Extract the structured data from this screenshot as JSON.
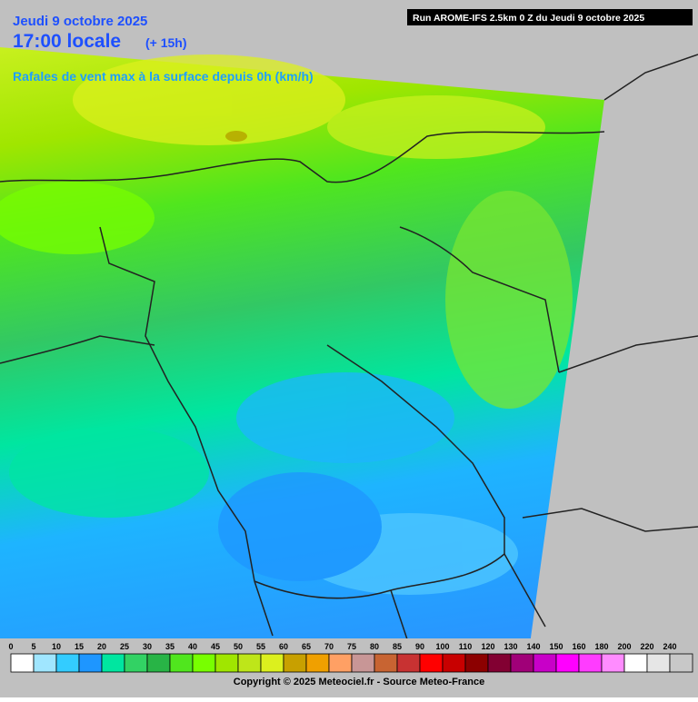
{
  "header": {
    "date": "Jeudi 9 octobre 2025",
    "time": "17:00 locale",
    "lead": "(+ 15h)",
    "parameter": "Rafales de vent max à la surface depuis 0h (km/h)",
    "run": "Run AROME-IFS 2.5km 0 Z du Jeudi 9 octobre 2025"
  },
  "legend": [
    {
      "label": "0",
      "color": "#ffffff"
    },
    {
      "label": "5",
      "color": "#a0e6ff"
    },
    {
      "label": "10",
      "color": "#33ccff"
    },
    {
      "label": "15",
      "color": "#1e96ff"
    },
    {
      "label": "20",
      "color": "#00e6a0"
    },
    {
      "label": "25",
      "color": "#32d264"
    },
    {
      "label": "30",
      "color": "#28b446"
    },
    {
      "label": "35",
      "color": "#50e61e"
    },
    {
      "label": "40",
      "color": "#78ff00"
    },
    {
      "label": "45",
      "color": "#a0e600"
    },
    {
      "label": "50",
      "color": "#bee619"
    },
    {
      "label": "55",
      "color": "#dcf01e"
    },
    {
      "label": "60",
      "color": "#c8a000"
    },
    {
      "label": "65",
      "color": "#f0a000"
    },
    {
      "label": "70",
      "color": "#ffa064"
    },
    {
      "label": "75",
      "color": "#c89696"
    },
    {
      "label": "80",
      "color": "#c86432"
    },
    {
      "label": "85",
      "color": "#c83232"
    },
    {
      "label": "90",
      "color": "#ff0000"
    },
    {
      "label": "100",
      "color": "#c80000"
    },
    {
      "label": "110",
      "color": "#8c0000"
    },
    {
      "label": "120",
      "color": "#820032"
    },
    {
      "label": "130",
      "color": "#a00078"
    },
    {
      "label": "140",
      "color": "#c800c8"
    },
    {
      "label": "150",
      "color": "#ff00ff"
    },
    {
      "label": "160",
      "color": "#ff3cff"
    },
    {
      "label": "180",
      "color": "#ff8cff"
    },
    {
      "label": "200",
      "color": "#ffffff"
    },
    {
      "label": "220",
      "color": "#e6e6e6"
    },
    {
      "label": "240",
      "color": "#c8c8c8"
    }
  ],
  "footer": {
    "copyright": "Copyright © 2025 Meteociel.fr - Source Meteo-France"
  }
}
